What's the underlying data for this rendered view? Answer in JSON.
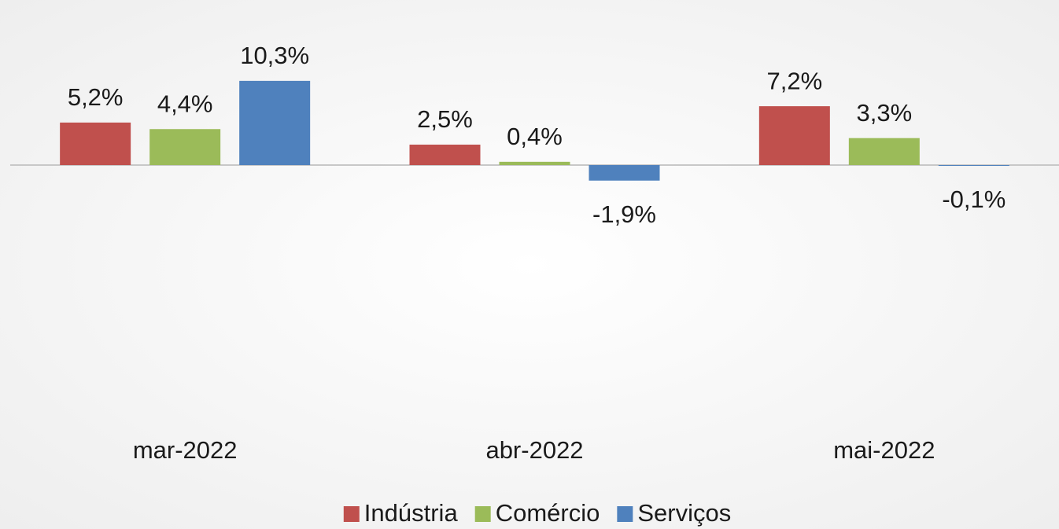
{
  "chart_data": {
    "type": "bar",
    "categories": [
      "mar-2022",
      "abr-2022",
      "mai-2022"
    ],
    "series": [
      {
        "name": "Indústria",
        "color": "#c0504d",
        "values": [
          5.2,
          2.5,
          7.2
        ],
        "value_labels": [
          "5,2%",
          "2,5%",
          "7,2%"
        ]
      },
      {
        "name": "Comércio",
        "color": "#9bbb59",
        "values": [
          4.4,
          0.4,
          3.3
        ],
        "value_labels": [
          "4,4%",
          "0,4%",
          "3,3%"
        ]
      },
      {
        "name": "Serviços",
        "color": "#4f81bd",
        "values": [
          10.3,
          -1.9,
          -0.1
        ],
        "value_labels": [
          "10,3%",
          "-1,9%",
          "-0,1%"
        ]
      }
    ],
    "ylim": [
      -30,
      20
    ]
  }
}
